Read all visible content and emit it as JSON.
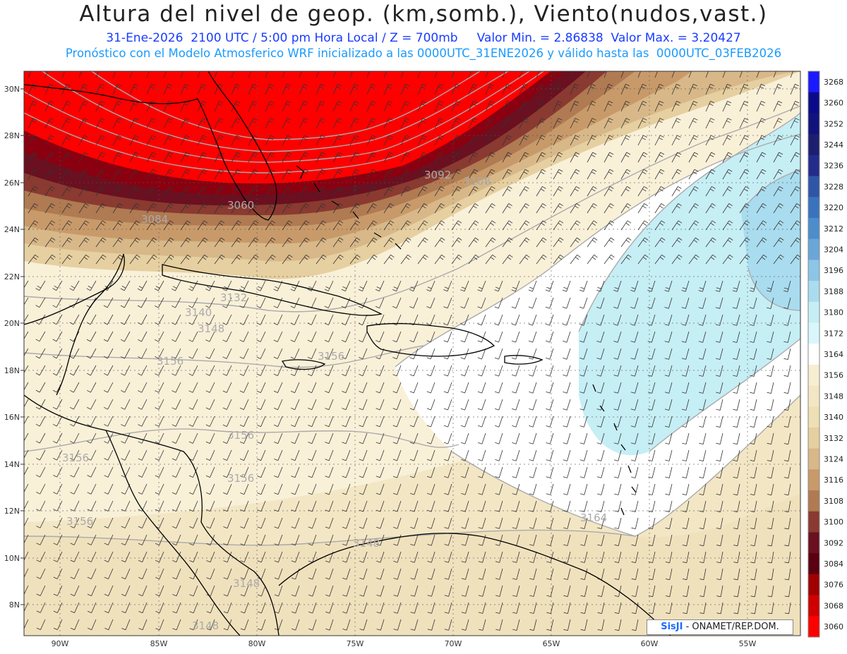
{
  "header": {
    "title": "Altura del nivel de geop. (km,somb.), Viento(nudos,vast.)",
    "line1": "31-Ene-2026  2100 UTC / 5:00 pm Hora Local / Z = 700mb     Valor Min. = 2.86838  Valor Max. = 3.20427",
    "line2": "Pronóstico con el Modelo Atmosferico WRF inicializado a las 0000UTC_31ENE2026 y válido hasta las  0000UTC_03FEB2026"
  },
  "credit": {
    "logo": "SisJI",
    "text": " - ONAMET/REP.DOM."
  },
  "axes": {
    "lon_labels": [
      "90W",
      "85W",
      "80W",
      "75W",
      "70W",
      "65W",
      "60W",
      "55W"
    ],
    "lat_labels": [
      "30N",
      "28N",
      "26N",
      "24N",
      "22N",
      "20N",
      "18N",
      "16N",
      "14N",
      "12N",
      "10N",
      "8N"
    ]
  },
  "colorbar": {
    "levels": [
      "3268",
      "3260",
      "3252",
      "3244",
      "3236",
      "3228",
      "3220",
      "3212",
      "3204",
      "3196",
      "3188",
      "3180",
      "3172",
      "3164",
      "3156",
      "3148",
      "3140",
      "3132",
      "3124",
      "3116",
      "3108",
      "3100",
      "3092",
      "3084",
      "3076",
      "3068",
      "3060"
    ],
    "colors": [
      "#1a1aff",
      "#0b0b8a",
      "#12127c",
      "#1e1e70",
      "#232c8c",
      "#2f55a8",
      "#3a73bd",
      "#4d8dcc",
      "#6aa6d8",
      "#8cc5e6",
      "#a9dcee",
      "#c6eef5",
      "#d9f7fb",
      "#ffffff",
      "#f7eed2",
      "#f3e6c4",
      "#eedfb4",
      "#e6cfa0",
      "#d8b888",
      "#c89a6a",
      "#b07a52",
      "#8a3a30",
      "#6a1020",
      "#5a0010",
      "#a00000",
      "#d00000",
      "#ff0000"
    ]
  },
  "contour_labels": [
    "3092",
    "3108",
    "3060",
    "3084",
    "3132",
    "3140",
    "3148",
    "3156",
    "3156",
    "3156",
    "3156",
    "3156",
    "3164",
    "3156",
    "3148",
    "3148",
    "3148"
  ]
}
